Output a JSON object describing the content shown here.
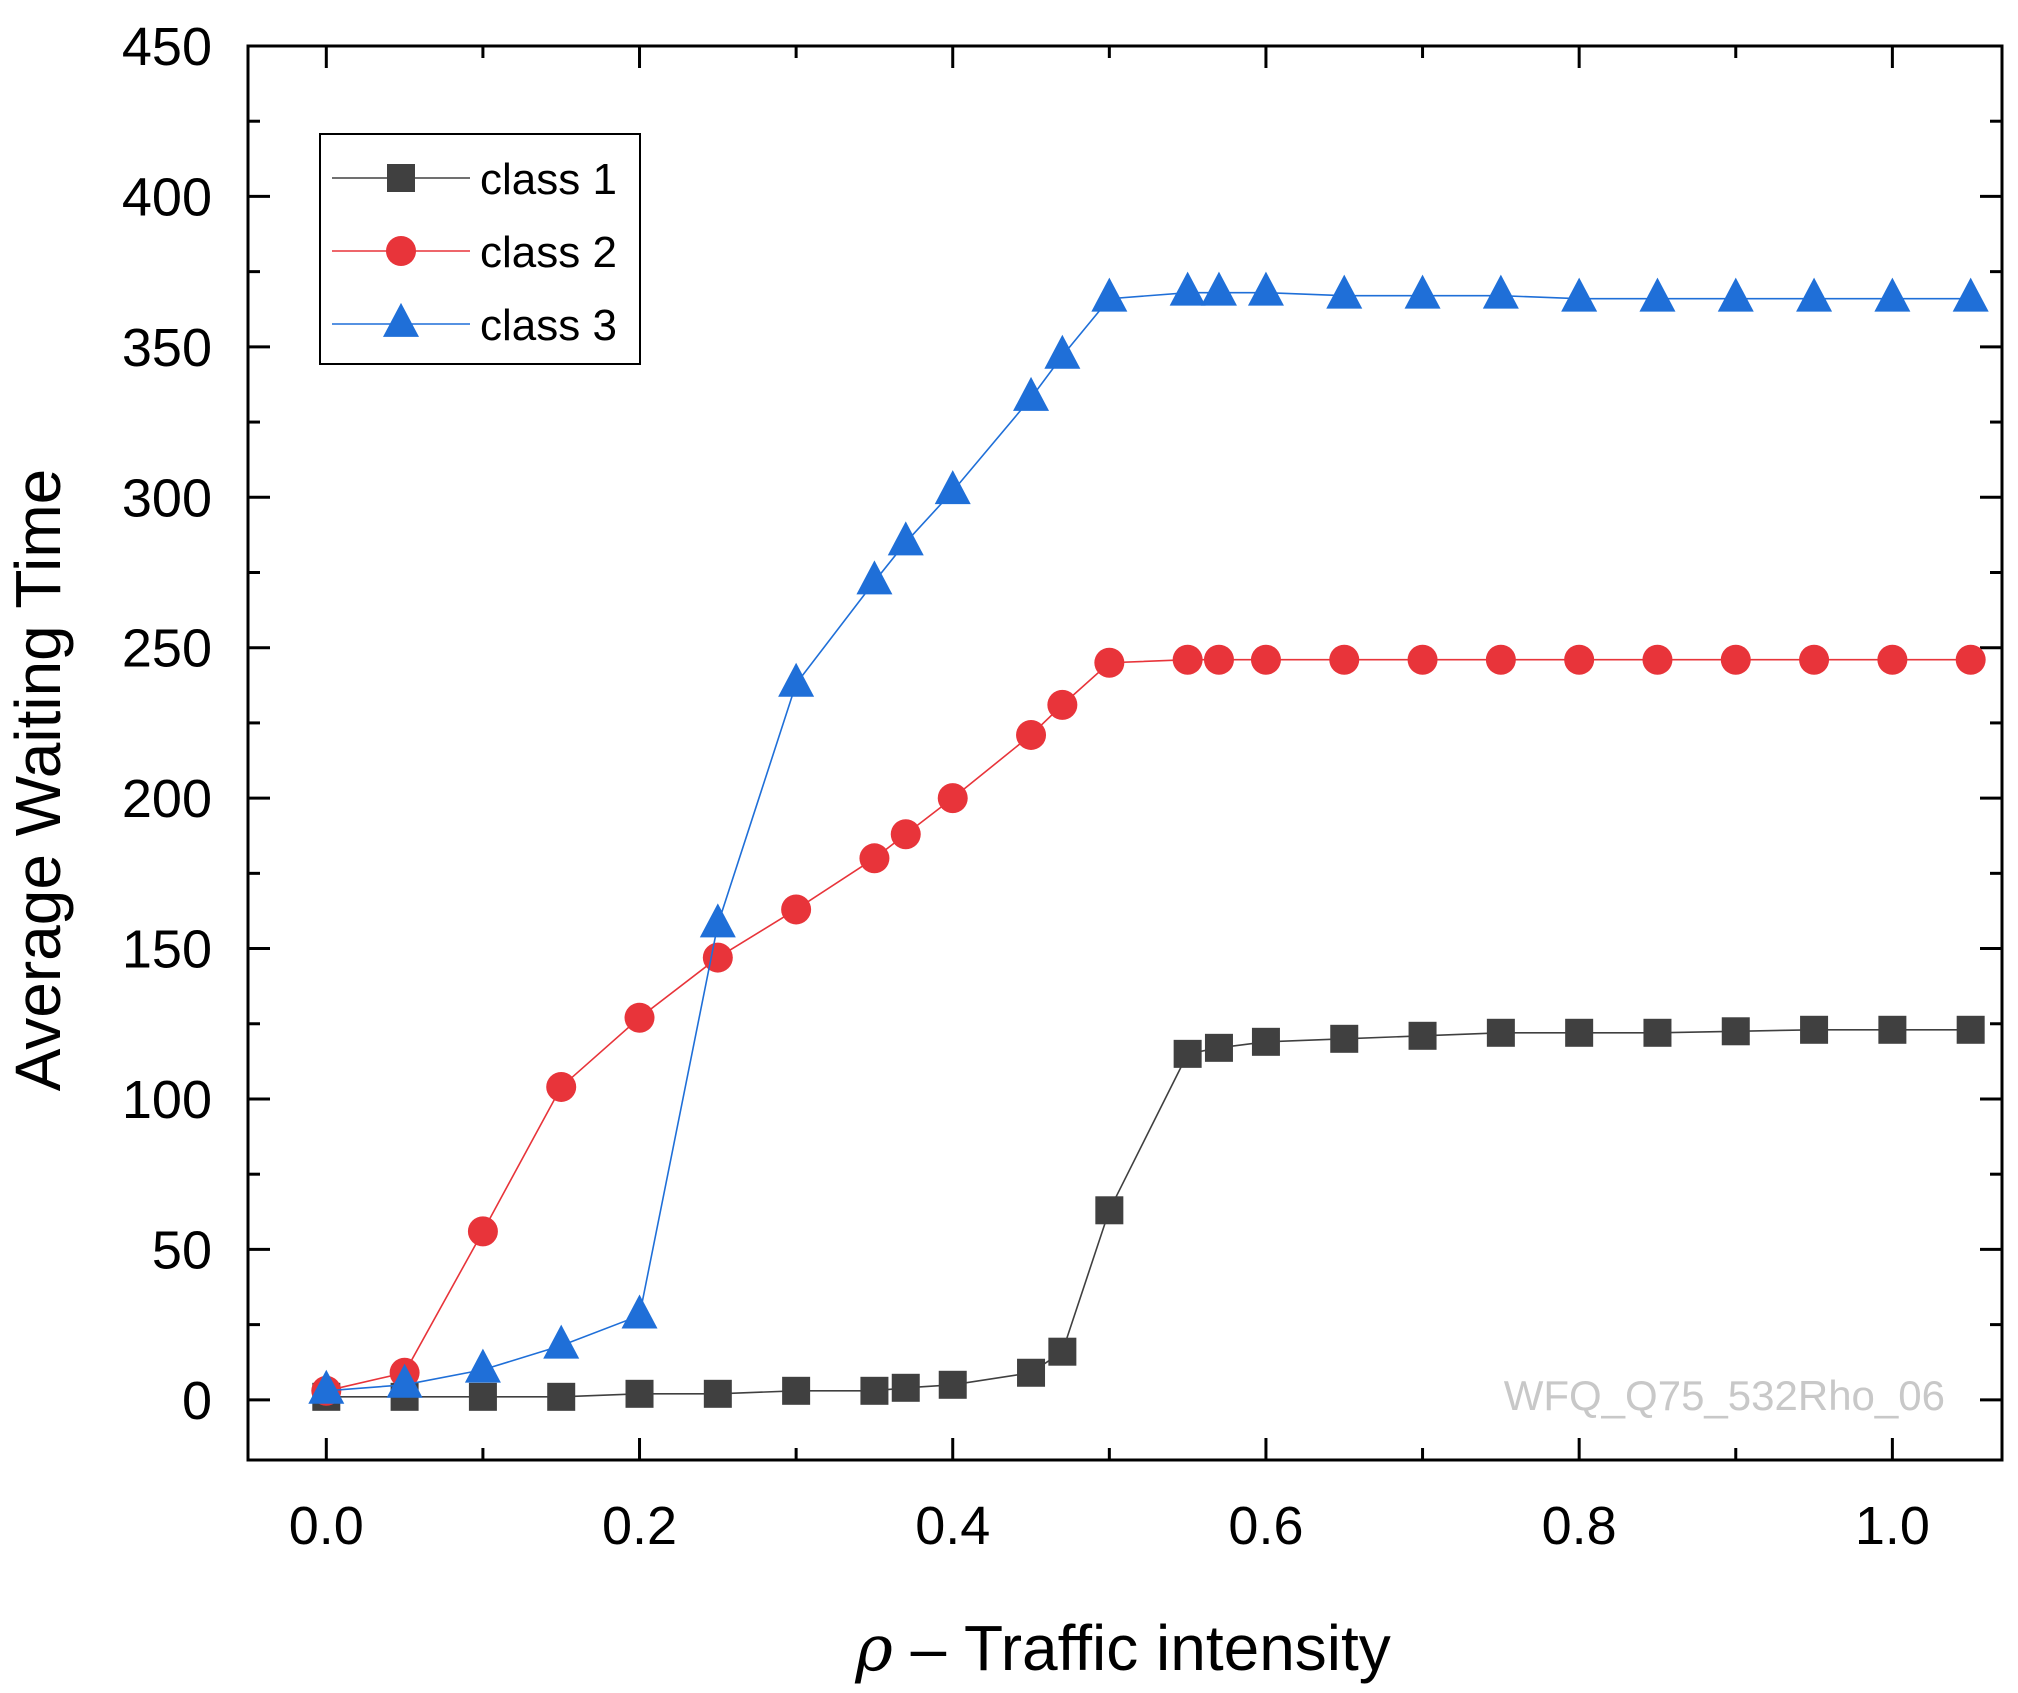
{
  "chart_data": {
    "type": "line",
    "xlabel_symbol": "ρ",
    "xlabel_text": " – Traffic intensity",
    "ylabel": "Average Waiting Time",
    "xlim": [
      -0.05,
      1.07
    ],
    "ylim": [
      -20,
      450
    ],
    "xticks": [
      0.0,
      0.2,
      0.4,
      0.6,
      0.8,
      1.0
    ],
    "xtick_labels": [
      "0.0",
      "0.2",
      "0.4",
      "0.6",
      "0.8",
      "1.0"
    ],
    "yticks": [
      0,
      50,
      100,
      150,
      200,
      250,
      300,
      350,
      400,
      450
    ],
    "ytick_labels": [
      "0",
      "50",
      "100",
      "150",
      "200",
      "250",
      "300",
      "350",
      "400",
      "450"
    ],
    "grid": false,
    "legend_position": "top-left",
    "watermark": "WFQ_Q75_532Rho_06",
    "x": [
      0.0,
      0.05,
      0.1,
      0.15,
      0.2,
      0.25,
      0.3,
      0.35,
      0.37,
      0.4,
      0.45,
      0.47,
      0.5,
      0.55,
      0.57,
      0.6,
      0.65,
      0.7,
      0.75,
      0.8,
      0.85,
      0.9,
      0.95,
      1.0,
      1.05
    ],
    "series": [
      {
        "name": "class 1",
        "color": "#404040",
        "marker": "square",
        "values": [
          1,
          1,
          1,
          1,
          2,
          2,
          3,
          3,
          4,
          5,
          9,
          16,
          63,
          115,
          117,
          119,
          120,
          121,
          122,
          122,
          122,
          122.5,
          123,
          123,
          123
        ]
      },
      {
        "name": "class 2",
        "color": "#e8343a",
        "marker": "circle",
        "values": [
          3,
          9,
          56,
          104,
          127,
          147,
          163,
          180,
          188,
          200,
          221,
          231,
          245,
          246,
          246,
          246,
          246,
          246,
          246,
          246,
          246,
          246,
          246,
          246,
          246
        ]
      },
      {
        "name": "class 3",
        "color": "#1f6fd8",
        "marker": "triangle",
        "values": [
          3,
          5,
          10,
          18,
          28,
          158,
          238,
          272,
          285,
          302,
          333,
          347,
          366,
          368,
          368,
          368,
          367,
          367,
          367,
          366,
          366,
          366,
          366,
          366,
          366
        ]
      }
    ]
  }
}
